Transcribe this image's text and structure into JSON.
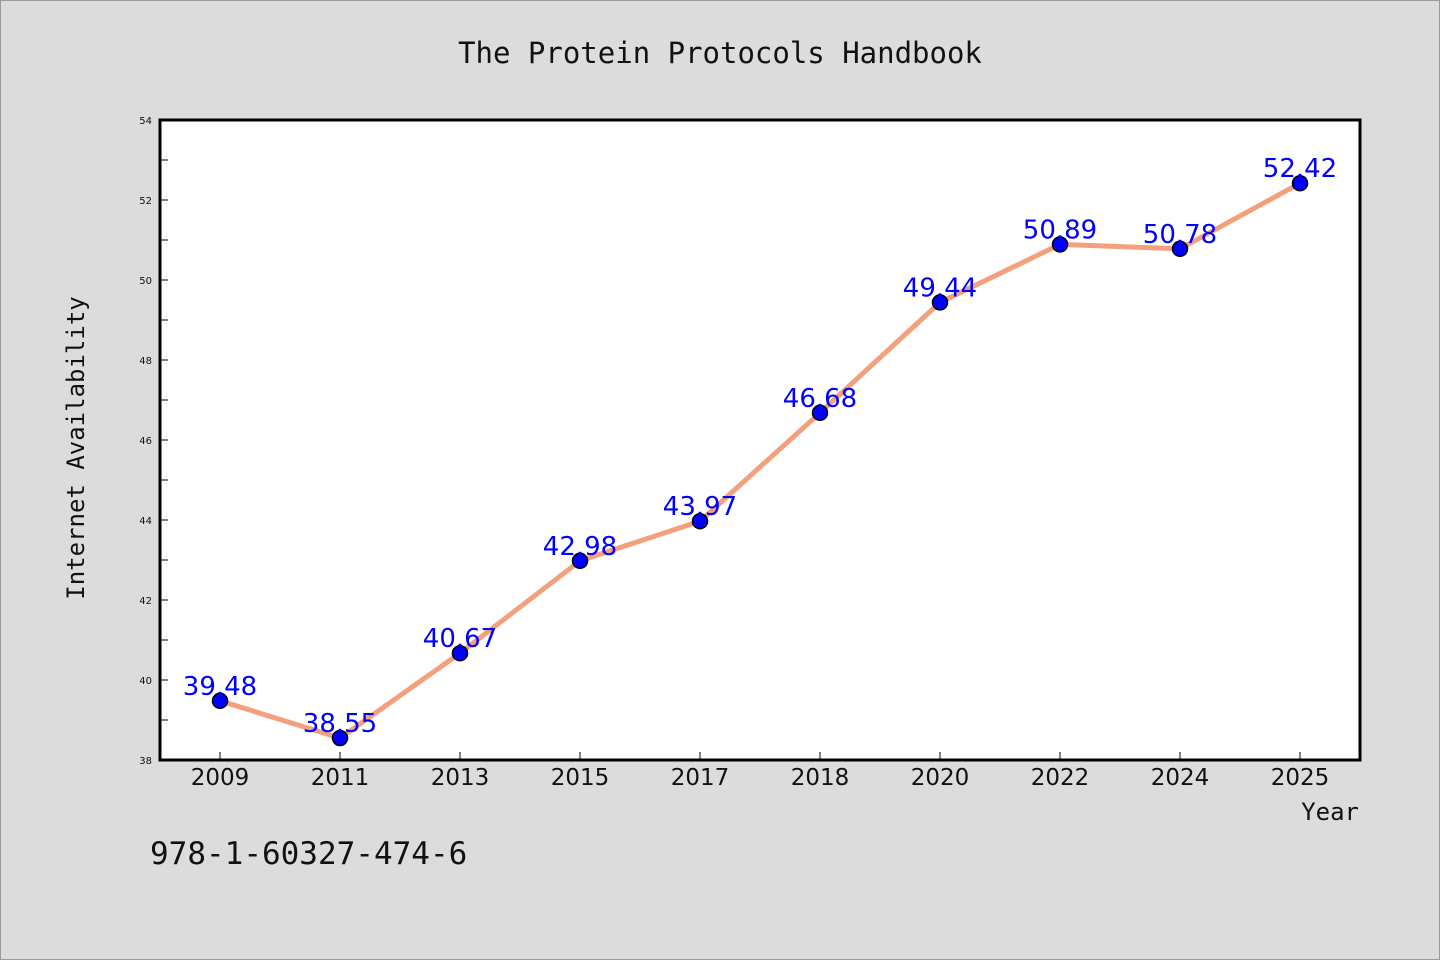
{
  "chart_data": {
    "type": "line",
    "title": "The Protein Protocols Handbook",
    "xlabel": "Year",
    "ylabel": "Internet Availability",
    "categories": [
      "2009",
      "2011",
      "2013",
      "2015",
      "2017",
      "2018",
      "2020",
      "2022",
      "2024",
      "2025"
    ],
    "series": [
      {
        "values": [
          39.48,
          38.55,
          40.67,
          42.98,
          43.97,
          46.68,
          49.44,
          50.89,
          50.78,
          52.42
        ]
      }
    ],
    "data_labels": [
      "39.48",
      "38.55",
      "40.67",
      "42.98",
      "43.97",
      "46.68",
      "49.44",
      "50.89",
      "50.78",
      "52.42"
    ],
    "ylim": [
      38,
      54
    ],
    "yticks": [
      38,
      40,
      42,
      44,
      46,
      48,
      50,
      52,
      54
    ],
    "grid": false,
    "legend": "none",
    "colors": {
      "line": "#f4a07c",
      "marker": "#0000ff",
      "data_label": "#0000ff",
      "background": "#dcdcdc",
      "plot_background": "#ffffff"
    }
  },
  "footer": {
    "isbn": "978-1-60327-474-6"
  }
}
